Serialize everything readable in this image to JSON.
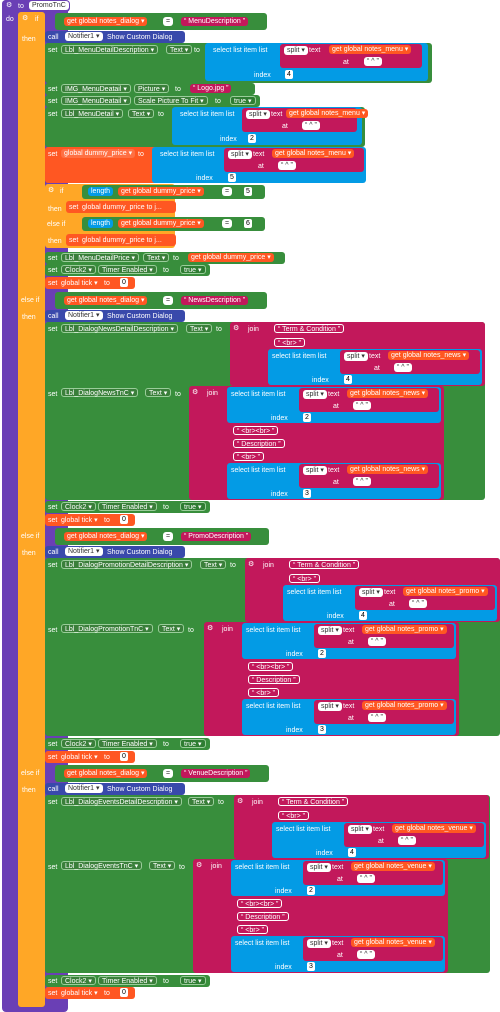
{
  "kw": {
    "to": "to",
    "do": "do",
    "if": "if",
    "then": "then",
    "elseif": "else if",
    "set": "set",
    "call": "call",
    "get": "get",
    "length": "length",
    "join": "join",
    "sel": "select list item  list",
    "split": "split",
    "text": "text",
    "at": "at",
    "index": "index"
  },
  "proc_name": "PromoTnC",
  "dialog_var": "global notes_dialog",
  "eq": "=",
  "dm": "MenuDescription",
  "dn": "NewsDescription",
  "dp": "PromoDescription",
  "dv": "VenueDescription",
  "notifier": "Notifier1",
  "show": "Show Custom Dialog",
  "prop": {
    "text": "Text",
    "picture": "Picture",
    "scale": "Scale Picture To Fit",
    "timer": "Timer Enabled"
  },
  "comp": {
    "mdd": "Lbl_MenuDetailDescription",
    "img": "IMG_MenuDeatail",
    "mdet": "Lbl_MenuDetail",
    "mdp": "Lbl_MenuDetailPrice",
    "clock": "Clock2",
    "ndd": "Lbl_DialogNewsDetailDescription",
    "ntnc": "Lbl_DialogNewsTnC",
    "pdd": "Lbl_DialogPromotionDetailDescription",
    "ptnc": "Lbl_DialogPromotionTnC",
    "edd": "Lbl_DialogEventsDetailDescription",
    "etnc": "Lbl_DialogEventsTnC"
  },
  "var": {
    "menu": "global notes_menu",
    "news": "global notes_news",
    "promo": "global notes_promo",
    "venue": "global notes_venue",
    "price": "global dummy_price",
    "dprice": "global dummy_price",
    "tick": "global tick"
  },
  "set_dprice": "global dummy_price",
  "set_dprice_tj": "global dummy_price to j...",
  "logo": "Logo.jpg",
  "tru": "true",
  "caret": "^",
  "br": "<br>",
  "brbr": "<br><br>",
  "tc": "Term & Condition",
  "desc": "Description",
  "n": {
    "zero": "0",
    "two": "2",
    "three": "3",
    "four": "4",
    "five": "5",
    "six": "6"
  }
}
